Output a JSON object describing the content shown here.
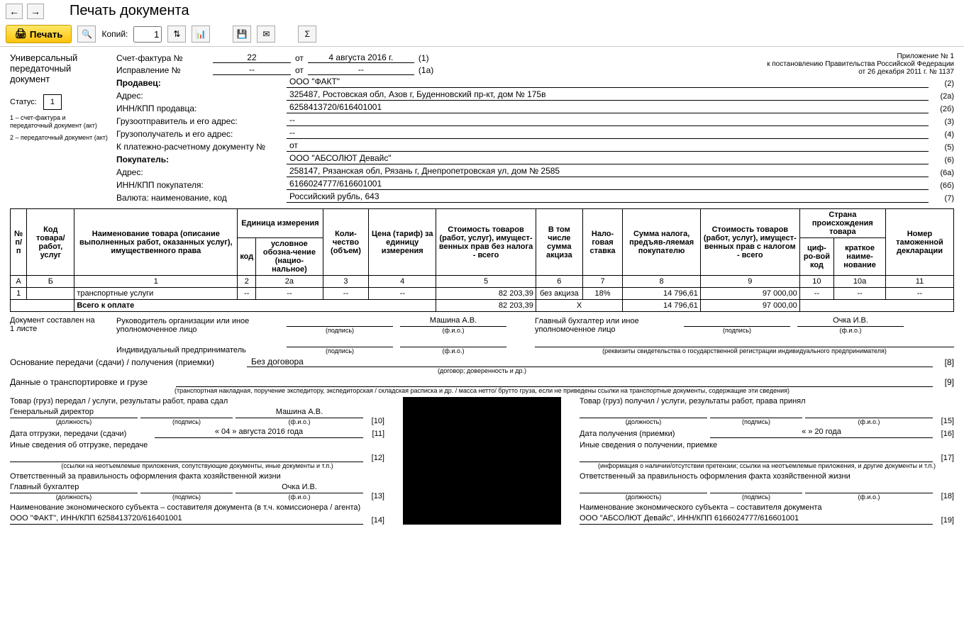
{
  "window": {
    "title": "Печать документа"
  },
  "toolbar": {
    "print": "Печать",
    "copies_label": "Копий:",
    "copies_value": "1"
  },
  "doc": {
    "left": {
      "title1": "Универсальный",
      "title2": "передаточный",
      "title3": "документ",
      "status_label": "Статус:",
      "status_value": "1",
      "legend1": "1 – счет-фактура и передаточный документ (акт)",
      "legend2": "2 – передаточный документ (акт)"
    },
    "appendix": {
      "line1": "Приложение № 1",
      "line2": "к постановлению Правительства Российской Федерации",
      "line3": "от 26 декабря 2011 г. № 1137"
    },
    "header": {
      "sf_label": "Счет-фактура №",
      "sf_no": "22",
      "sf_ot": "от",
      "sf_date": "4 августа 2016 г.",
      "sf_code": "(1)",
      "isp_label": "Исправление №",
      "isp_no": "--",
      "isp_ot": "от",
      "isp_date": "--",
      "isp_code": "(1а)"
    },
    "fields": [
      {
        "lab": "Продавец:",
        "val": "ООО \"ФАКТ\"",
        "code": "(2)",
        "bold": true
      },
      {
        "lab": "Адрес:",
        "val": "325487, Ростовская обл, Азов г, Буденновский пр-кт, дом № 175в",
        "code": "(2а)"
      },
      {
        "lab": "ИНН/КПП продавца:",
        "val": "6258413720/616401001",
        "code": "(2б)"
      },
      {
        "lab": "Грузоотправитель и его адрес:",
        "val": "--",
        "code": "(3)"
      },
      {
        "lab": "Грузополучатель и его адрес:",
        "val": "--",
        "code": "(4)"
      },
      {
        "lab": "К платежно-расчетному документу №",
        "val": "от",
        "code": "(5)"
      },
      {
        "lab": "Покупатель:",
        "val": "ООО \"АБСОЛЮТ Девайс\"",
        "code": "(6)",
        "bold": true
      },
      {
        "lab": "Адрес:",
        "val": "258147, Рязанская обл, Рязань г, Днепропетровская ул, дом № 2585",
        "code": "(6а)"
      },
      {
        "lab": "ИНН/КПП покупателя:",
        "val": "6166024777/616601001",
        "code": "(6б)"
      },
      {
        "lab": "Валюта: наименование, код",
        "val": "Российский рубль, 643",
        "code": "(7)"
      }
    ],
    "table": {
      "headers": {
        "c1": "№ п/п",
        "c2": "Код товара/ работ, услуг",
        "c3": "Наименование товара (описание выполненных работ, оказанных услуг), имущественного права",
        "c4g": "Единица измерения",
        "c4a": "код",
        "c4b": "условное обозна-чение (нацио-нальное)",
        "c5": "Коли-чество (объем)",
        "c6": "Цена (тариф) за единицу измерения",
        "c7": "Стоимость товаров (работ, услуг), имущест-венных прав без налога - всего",
        "c8": "В том числе сумма акциза",
        "c9": "Нало-говая ставка",
        "c10": "Сумма налога, предъяв-ляемая покупателю",
        "c11": "Стоимость товаров (работ, услуг), имущест-венных прав с налогом - всего",
        "c12g": "Страна происхождения товара",
        "c12a": "циф-ро-вой код",
        "c12b": "краткое наиме-нование",
        "c13": "Номер таможенной декларации"
      },
      "colnums": [
        "А",
        "Б",
        "1",
        "2",
        "2а",
        "3",
        "4",
        "5",
        "6",
        "7",
        "8",
        "9",
        "10",
        "10а",
        "11"
      ],
      "row": {
        "n": "1",
        "code": "",
        "name": "транспортные услуги",
        "u1": "--",
        "u2": "--",
        "qty": "--",
        "price": "--",
        "sum_nonds": "82 203,39",
        "akciz": "без акциза",
        "rate": "18%",
        "nds": "14 796,61",
        "sum_nds": "97 000,00",
        "cc": "--",
        "cn": "--",
        "decl": "--"
      },
      "total": {
        "label": "Всего к оплате",
        "sum_nonds": "82 203,39",
        "x": "Х",
        "nds": "14 796,61",
        "sum_nds": "97 000,00"
      }
    },
    "sig": {
      "pages": "Документ составлен на\n1 листе",
      "ruk": "Руководитель организации или иное уполномоченное лицо",
      "ruk_fio": "Машина А.В.",
      "gb": "Главный бухгалтер или иное уполномоченное лицо",
      "gb_fio": "Очка И.В.",
      "ip": "Индивидуальный предприниматель",
      "podpis": "(подпись)",
      "fio": "(ф.и.о.)",
      "rekv": "(реквизиты свидетельства о государственной  регистрации индивидуального предпринимателя)"
    },
    "bottom": {
      "osn_label": "Основание передачи (сдачи) / получения (приемки)",
      "osn_val": "Без договора",
      "osn_sub": "(договор; доверенность и др.)",
      "trans_label": "Данные о транспортировке и грузе",
      "trans_sub": "(транспортная накладная, поручение экспедитору, экспедиторская / складская расписка и др. / масса нетто/ брутто груза, если не приведены ссылки на транспортные документы, содержащие эти сведения)",
      "n8": "[8]",
      "n9": "[9]",
      "left": {
        "h1": "Товар (груз) передал / услуги, результаты работ, права сдал",
        "pos": "Генеральный директор",
        "fio": "Машина А.В.",
        "n10": "[10]",
        "date_lab": "Дата отгрузки, передачи (сдачи)",
        "date_val": "« 04 »   августа   2016   года",
        "n11": "[11]",
        "other": "Иные сведения об отгрузке, передаче",
        "n12": "[12]",
        "other_sub": "(ссылки на неотъемлемые приложения, сопутствующие документы, иные документы и т.п.)",
        "resp": "Ответственный за правильность оформления факта хозяйственной жизни",
        "resp_pos": "Главный бухгалтер",
        "resp_fio": "Очка И.В.",
        "n13": "[13]",
        "econ": "Наименование экономического субъекта – составителя документа (в т.ч. комиссионера / агента)",
        "econ_val": "ООО \"ФАКТ\", ИНН/КПП 6258413720/616401001",
        "n14": "[14]"
      },
      "right": {
        "h1": "Товар (груз) получил / услуги, результаты работ, права принял",
        "n15": "[15]",
        "date_lab": "Дата получения (приемки)",
        "date_val": "«       »                           20       года",
        "n16": "[16]",
        "other": "Иные сведения о получении, приемке",
        "n17": "[17]",
        "other_sub": "(информация о наличии/отсутствии претензии; ссылки на неотъемлемые приложения, и другие  документы и т.п.)",
        "resp": "Ответственный за правильность оформления факта хозяйственной жизни",
        "n18": "[18]",
        "econ": "Наименование экономического субъекта – составителя документа",
        "econ_val": "ООО \"АБСОЛЮТ Девайс\", ИНН/КПП 6166024777/616601001",
        "n19": "[19]"
      },
      "sub_pos": "(должность)",
      "sub_sig": "(подпись)",
      "sub_fio": "(ф.и.о.)"
    }
  }
}
